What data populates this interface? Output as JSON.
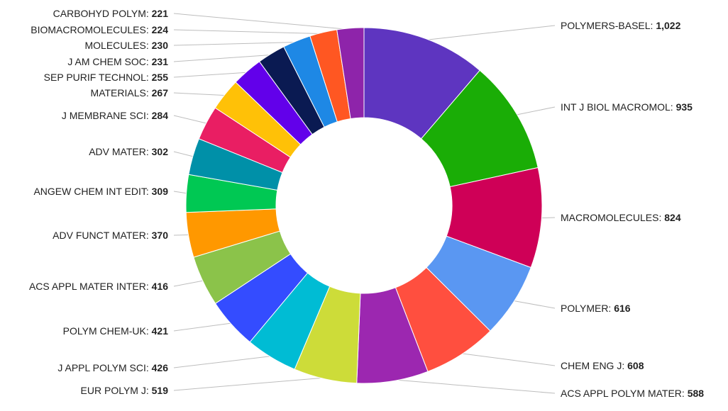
{
  "chart_data": {
    "type": "pie",
    "donut": true,
    "title": "",
    "slices": [
      {
        "label": "POLYMERS-BASEL",
        "value": 1022,
        "display": "1,022",
        "color": "#5e35c0",
        "side": "right"
      },
      {
        "label": "INT J BIOL MACROMOL",
        "value": 935,
        "display": "935",
        "color": "#1aad06",
        "side": "right"
      },
      {
        "label": "MACROMOLECULES",
        "value": 824,
        "display": "824",
        "color": "#cf0057",
        "side": "right"
      },
      {
        "label": "POLYMER",
        "value": 616,
        "display": "616",
        "color": "#5a97f2",
        "side": "right"
      },
      {
        "label": "CHEM ENG J",
        "value": 608,
        "display": "608",
        "color": "#ff4f3f",
        "side": "right"
      },
      {
        "label": "ACS APPL POLYM MATER",
        "value": 588,
        "display": "588",
        "color": "#9c27b0",
        "side": "right"
      },
      {
        "label": "EUR POLYM J",
        "value": 519,
        "display": "519",
        "color": "#cddc39",
        "side": "left"
      },
      {
        "label": "J APPL POLYM SCI",
        "value": 426,
        "display": "426",
        "color": "#00bcd4",
        "side": "left"
      },
      {
        "label": "POLYM CHEM-UK",
        "value": 421,
        "display": "421",
        "color": "#344cff",
        "side": "left"
      },
      {
        "label": "ACS APPL MATER INTER",
        "value": 416,
        "display": "416",
        "color": "#8bc34a",
        "side": "left"
      },
      {
        "label": "ADV FUNCT MATER",
        "value": 370,
        "display": "370",
        "color": "#ff9800",
        "side": "left"
      },
      {
        "label": "ANGEW CHEM INT EDIT",
        "value": 309,
        "display": "309",
        "color": "#00c853",
        "side": "left"
      },
      {
        "label": "ADV MATER",
        "value": 302,
        "display": "302",
        "color": "#0090a8",
        "side": "left"
      },
      {
        "label": "J MEMBRANE SCI",
        "value": 284,
        "display": "284",
        "color": "#e91e63",
        "side": "left"
      },
      {
        "label": "MATERIALS",
        "value": 267,
        "display": "267",
        "color": "#ffc107",
        "side": "left"
      },
      {
        "label": "SEP PURIF TECHNOL",
        "value": 255,
        "display": "255",
        "color": "#6200ea",
        "side": "left"
      },
      {
        "label": "J AM CHEM SOC",
        "value": 231,
        "display": "231",
        "color": "#0a1a52",
        "side": "left"
      },
      {
        "label": "MOLECULES",
        "value": 230,
        "display": "230",
        "color": "#1e88e5",
        "side": "left"
      },
      {
        "label": "BIOMACROMOLECULES",
        "value": 224,
        "display": "224",
        "color": "#ff5722",
        "side": "left"
      },
      {
        "label": "CARBOHYD POLYM",
        "value": 221,
        "display": "221",
        "color": "#8e24aa",
        "side": "left"
      }
    ]
  }
}
